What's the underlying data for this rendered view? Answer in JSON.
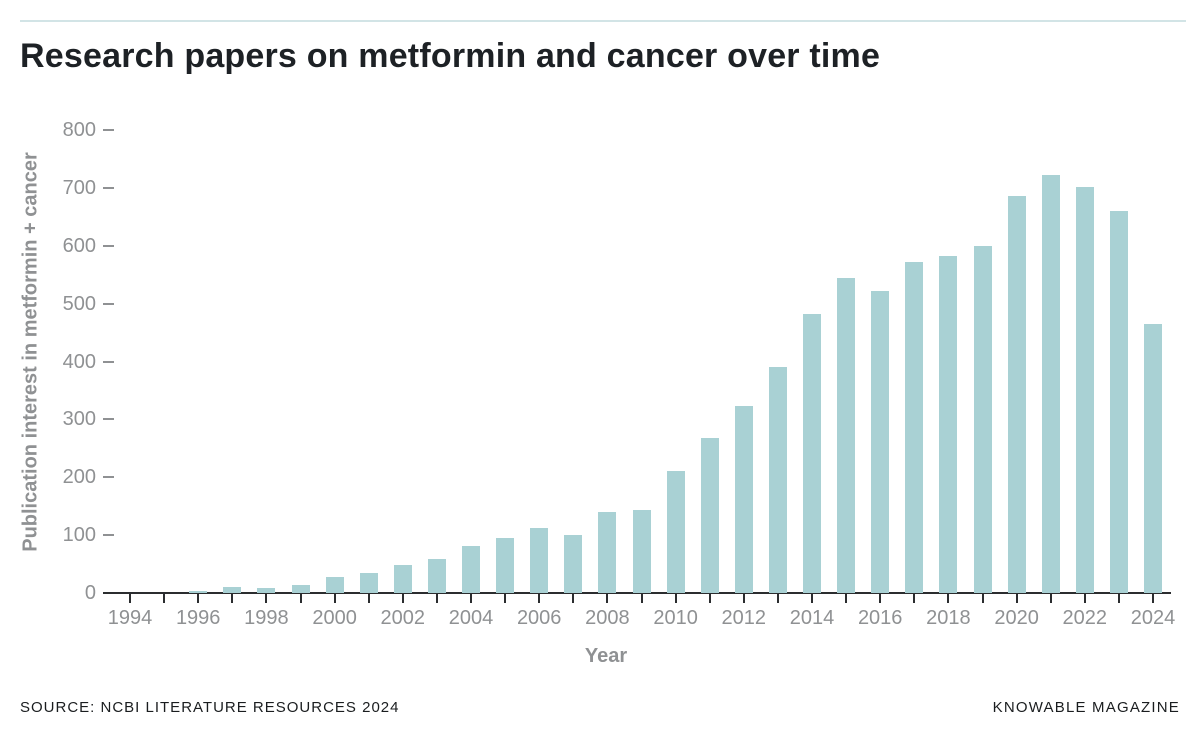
{
  "page": {
    "title": "Research papers on metformin and cancer over time",
    "source": "SOURCE: NCBI LITERATURE RESOURCES 2024",
    "credit": "KNOWABLE MAGAZINE"
  },
  "colors": {
    "bar": "#a9d1d4",
    "top_rule": "#d2e4e6",
    "axis": "#2b2d2f",
    "label_gray": "#8f9193",
    "title_dark": "#1d2125"
  },
  "chart_data": {
    "type": "bar",
    "title": "Research papers on metformin and cancer over time",
    "xlabel": "Year",
    "ylabel": "Publication interest in metformin + cancer",
    "categories": [
      1994,
      1995,
      1996,
      1997,
      1998,
      1999,
      2000,
      2001,
      2002,
      2003,
      2004,
      2005,
      2006,
      2007,
      2008,
      2009,
      2010,
      2011,
      2012,
      2013,
      2014,
      2015,
      2016,
      2017,
      2018,
      2019,
      2020,
      2021,
      2022,
      2023,
      2024
    ],
    "values": [
      0,
      0,
      4,
      10,
      9,
      13,
      27,
      34,
      49,
      58,
      81,
      95,
      113,
      100,
      140,
      143,
      210,
      267,
      323,
      391,
      482,
      544,
      522,
      572,
      582,
      600,
      686,
      723,
      702,
      660,
      465
    ],
    "ylim": [
      0,
      800
    ],
    "ytick_interval": 100,
    "xtick_label_interval": 2,
    "grid": false,
    "legend_position": "none"
  }
}
